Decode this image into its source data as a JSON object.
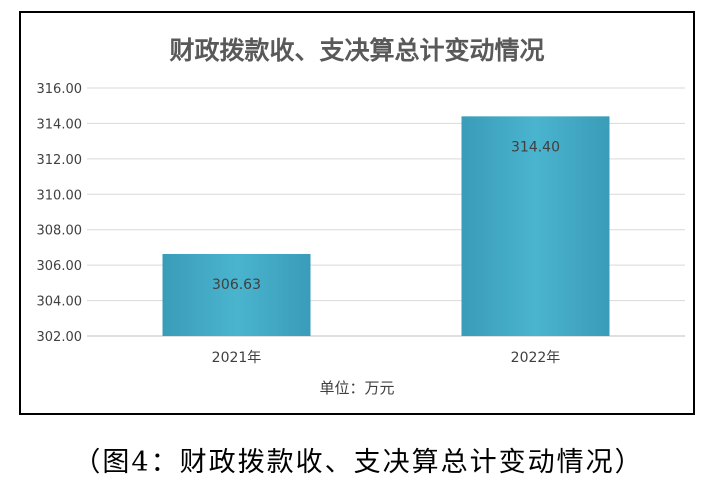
{
  "chart_data": {
    "type": "bar",
    "title": "财政拨款收、支决算总计变动情况",
    "categories": [
      "2021年",
      "2022年"
    ],
    "values": [
      306.63,
      314.4
    ],
    "data_labels": [
      "306.63",
      "314.40"
    ],
    "ylim": [
      302,
      316
    ],
    "yticks": [
      "302.00",
      "304.00",
      "306.00",
      "308.00",
      "310.00",
      "312.00",
      "314.00",
      "316.00"
    ],
    "xlabel": "单位：万元",
    "grid": true,
    "bar_color": "#43aec9"
  },
  "caption": "（图4：财政拨款收、支决算总计变动情况）"
}
